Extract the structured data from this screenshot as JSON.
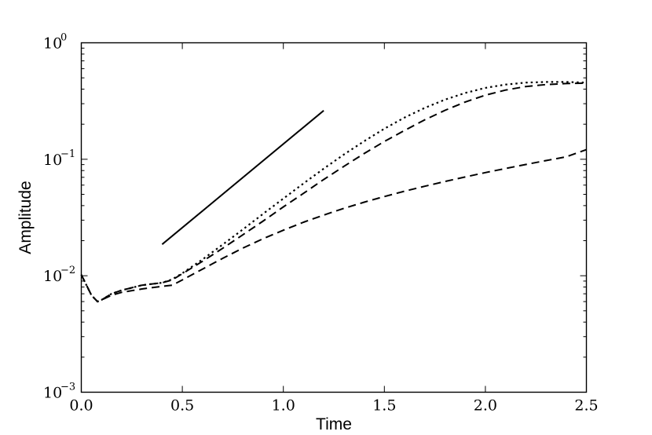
{
  "chart_data": {
    "type": "line",
    "title": "",
    "xlabel": "Time",
    "ylabel": "Amplitude",
    "xlim": [
      0.0,
      2.5
    ],
    "ylim": [
      0.001,
      1.0
    ],
    "yscale": "log",
    "grid": false,
    "legend": "none",
    "x_ticks": [
      "0.0",
      "0.5",
      "1.0",
      "1.5",
      "2.0",
      "2.5"
    ],
    "y_ticks": [
      {
        "base": "10",
        "exp": "−3",
        "value": 0.001
      },
      {
        "base": "10",
        "exp": "−2",
        "value": 0.01
      },
      {
        "base": "10",
        "exp": "−1",
        "value": 0.1
      },
      {
        "base": "10",
        "exp": "0",
        "value": 1.0
      }
    ],
    "series": [
      {
        "style": "dotted",
        "color": "#000000",
        "x": [
          0.0,
          0.05,
          0.08,
          0.1,
          0.15,
          0.2,
          0.3,
          0.4,
          0.45,
          0.5,
          0.6,
          0.7,
          0.8,
          0.9,
          1.0,
          1.1,
          1.2,
          1.3,
          1.4,
          1.5,
          1.6,
          1.7,
          1.8,
          1.9,
          2.0,
          2.1,
          2.2,
          2.3,
          2.4,
          2.5
        ],
        "y": [
          0.0102,
          0.0068,
          0.006,
          0.0062,
          0.007,
          0.0075,
          0.0083,
          0.0087,
          0.0093,
          0.0105,
          0.0138,
          0.0185,
          0.025,
          0.034,
          0.046,
          0.062,
          0.083,
          0.11,
          0.143,
          0.183,
          0.228,
          0.276,
          0.325,
          0.371,
          0.41,
          0.438,
          0.455,
          0.461,
          0.461,
          0.455
        ]
      },
      {
        "style": "dashed",
        "color": "#000000",
        "x": [
          0.0,
          0.05,
          0.08,
          0.1,
          0.15,
          0.2,
          0.3,
          0.4,
          0.45,
          0.5,
          0.6,
          0.7,
          0.8,
          0.9,
          1.0,
          1.1,
          1.2,
          1.3,
          1.4,
          1.5,
          1.6,
          1.7,
          1.8,
          1.9,
          2.0,
          2.1,
          2.2,
          2.3,
          2.4,
          2.5
        ],
        "y": [
          0.0102,
          0.0068,
          0.006,
          0.0062,
          0.007,
          0.0075,
          0.0083,
          0.0087,
          0.0092,
          0.0104,
          0.0133,
          0.0172,
          0.0225,
          0.0295,
          0.039,
          0.051,
          0.067,
          0.087,
          0.112,
          0.142,
          0.177,
          0.218,
          0.263,
          0.31,
          0.355,
          0.393,
          0.421,
          0.438,
          0.447,
          0.45
        ]
      },
      {
        "style": "dashed",
        "color": "#000000",
        "x": [
          0.0,
          0.05,
          0.08,
          0.1,
          0.15,
          0.2,
          0.3,
          0.4,
          0.45,
          0.5,
          0.6,
          0.7,
          0.8,
          0.9,
          1.0,
          1.1,
          1.2,
          1.3,
          1.4,
          1.5,
          1.6,
          1.7,
          1.8,
          1.9,
          2.0,
          2.1,
          2.2,
          2.3,
          2.4,
          2.5
        ],
        "y": [
          0.0102,
          0.0068,
          0.006,
          0.0062,
          0.0068,
          0.0072,
          0.0077,
          0.0081,
          0.0083,
          0.0092,
          0.0114,
          0.0141,
          0.0173,
          0.0208,
          0.0246,
          0.0288,
          0.0332,
          0.0379,
          0.0428,
          0.0479,
          0.0532,
          0.0587,
          0.0645,
          0.0705,
          0.0768,
          0.0833,
          0.0902,
          0.0974,
          0.105,
          0.121
        ]
      },
      {
        "style": "solid",
        "color": "#000000",
        "x": [
          0.4,
          1.2
        ],
        "y": [
          0.0186,
          0.262
        ]
      }
    ]
  }
}
